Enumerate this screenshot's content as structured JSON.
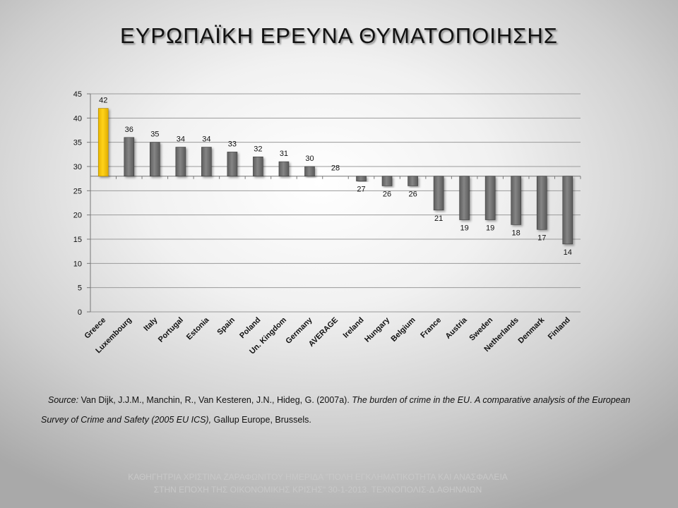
{
  "slide": {
    "title": "ΕΥΡΩΠΑΪΚΗ ΕΡΕΥΝΑ ΘΥΜΑΤΟΠΟΙΗΣΗΣ"
  },
  "chart_data": {
    "type": "bar",
    "title": "",
    "xlabel": "",
    "ylabel": "",
    "ylim": [
      0,
      45
    ],
    "yticks": [
      0,
      5,
      10,
      15,
      20,
      25,
      30,
      35,
      40,
      45
    ],
    "baseline": 28,
    "grid": true,
    "legend": "none",
    "categories": [
      "Greece",
      "Luxembourg",
      "Italy",
      "Portugal",
      "Estonia",
      "Spain",
      "Poland",
      "Un. Kingdom",
      "Germany",
      "AVERAGE",
      "Ireland",
      "Hungary",
      "Belgium",
      "France",
      "Austria",
      "Sweden",
      "Netherlands",
      "Denmark",
      "Finland"
    ],
    "values": [
      42,
      36,
      35,
      34,
      34,
      33,
      32,
      31,
      30,
      28,
      27,
      26,
      26,
      21,
      19,
      19,
      18,
      17,
      14
    ],
    "colors": {
      "highlight": "#f5c400",
      "default": "#767676",
      "grid": "#9a9a9a"
    },
    "highlight_category": "Greece"
  },
  "source": {
    "label": "Source:",
    "authors": "Van Dijk, J.J.M., Manchin, R., Van Kesteren, J.N., Hideg, G. (2007a). ",
    "title_italic": "The burden of crime in the EU",
    "dot": ". ",
    "subtitle_italic": "A comparative analysis of the European Survey of Crime and Safety (2005 EU ICS),",
    "publisher": " Gallup Europe, Brussels."
  },
  "footer": {
    "line1": "ΚΑΘΗΓΗΤΡΙΑ ΧΡΙΣΤΙΝΑ ΖΑΡΑΦΩΝΙΤΟΥ ΗΜΕΡΙΔΑ \"ΠΟΛΗ ΕΓΚΛΗΜΑΤΙΚΟΤΗΤΑ ΚΑΙ ΑΝΑΣΦΑΛΕΙΑ",
    "line2": "ΣΤΗΝ ΕΠΟΧΗ ΤΗΣ ΟΙΚΟΝΟΜΙΚΗΣ ΚΡΙΣΗΣ\" 30-1-2013. ΤΕΧΝΟΠΟΛΙΣ-Δ.ΑΘΗΝΑΙΩΝ"
  }
}
